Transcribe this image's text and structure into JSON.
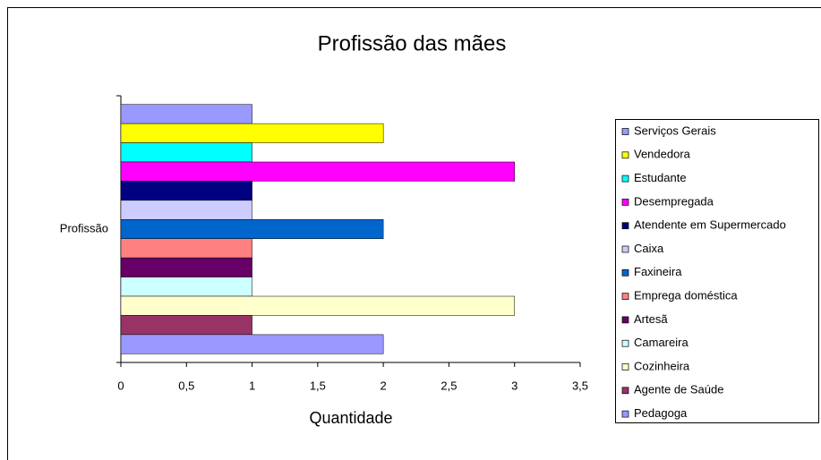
{
  "chart_data": {
    "type": "bar",
    "orientation": "horizontal",
    "title": "Profissão das mães",
    "x_label": "Quantidade",
    "categories": [
      "Profissão"
    ],
    "series": [
      {
        "name": "Serviços Gerais",
        "color": "#9999ff",
        "values": [
          1
        ]
      },
      {
        "name": "Vendedora",
        "color": "#ffff00",
        "values": [
          2
        ]
      },
      {
        "name": "Estudante",
        "color": "#00ffff",
        "values": [
          1
        ]
      },
      {
        "name": "Desempregada",
        "color": "#ff00ff",
        "values": [
          3
        ]
      },
      {
        "name": "Atendente em Supermercado",
        "color": "#000080",
        "values": [
          1
        ]
      },
      {
        "name": "Caixa",
        "color": "#ccccff",
        "values": [
          1
        ]
      },
      {
        "name": "Faxineira",
        "color": "#0066cc",
        "values": [
          2
        ]
      },
      {
        "name": "Emprega doméstica",
        "color": "#ff8080",
        "values": [
          1
        ]
      },
      {
        "name": "Artesã",
        "color": "#660066",
        "values": [
          1
        ]
      },
      {
        "name": "Camareira",
        "color": "#ccffff",
        "values": [
          1
        ]
      },
      {
        "name": "Cozinheira",
        "color": "#ffffcc",
        "values": [
          3
        ]
      },
      {
        "name": "Agente de Saúde",
        "color": "#993366",
        "values": [
          1
        ]
      },
      {
        "name": "Pedagoga",
        "color": "#9999ff",
        "values": [
          2
        ]
      }
    ],
    "xlim": [
      0,
      3.5
    ],
    "xticks": [
      0,
      {
        "value": 0.5,
        "label": "0,5"
      },
      1,
      {
        "value": 1.5,
        "label": "1,5"
      },
      2,
      {
        "value": 2.5,
        "label": "2,5"
      },
      3,
      {
        "value": 3.5,
        "label": "3,5"
      }
    ],
    "legend": "right"
  }
}
